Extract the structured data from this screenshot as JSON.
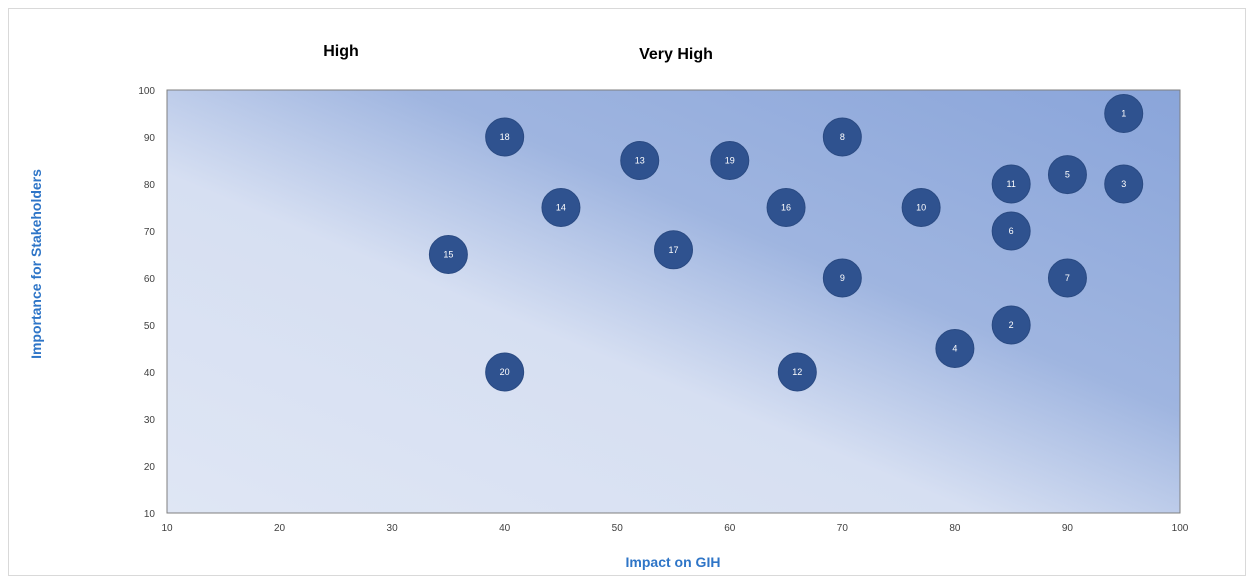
{
  "chart_data": {
    "type": "scatter",
    "title": "",
    "xlabel": "Impact on GIH",
    "ylabel": "Importance for Stakeholders",
    "xlim": [
      10,
      100
    ],
    "ylim": [
      10,
      100
    ],
    "xticks": [
      "10",
      "20",
      "30",
      "40",
      "50",
      "60",
      "70",
      "80",
      "90",
      "100"
    ],
    "yticks": [
      "10",
      "20",
      "30",
      "40",
      "50",
      "60",
      "70",
      "80",
      "90",
      "100"
    ],
    "grid": false,
    "zone_labels": [
      "High",
      "Very High"
    ],
    "points": [
      {
        "label": "1",
        "x": 95,
        "y": 95
      },
      {
        "label": "2",
        "x": 85,
        "y": 50
      },
      {
        "label": "3",
        "x": 95,
        "y": 80
      },
      {
        "label": "4",
        "x": 80,
        "y": 45
      },
      {
        "label": "5",
        "x": 90,
        "y": 82
      },
      {
        "label": "6",
        "x": 85,
        "y": 70
      },
      {
        "label": "7",
        "x": 90,
        "y": 60
      },
      {
        "label": "8",
        "x": 70,
        "y": 90
      },
      {
        "label": "9",
        "x": 70,
        "y": 60
      },
      {
        "label": "10",
        "x": 77,
        "y": 75
      },
      {
        "label": "11",
        "x": 85,
        "y": 80
      },
      {
        "label": "12",
        "x": 66,
        "y": 40
      },
      {
        "label": "13",
        "x": 52,
        "y": 85
      },
      {
        "label": "14",
        "x": 45,
        "y": 75
      },
      {
        "label": "15",
        "x": 35,
        "y": 65
      },
      {
        "label": "16",
        "x": 65,
        "y": 75
      },
      {
        "label": "17",
        "x": 55,
        "y": 66
      },
      {
        "label": "18",
        "x": 40,
        "y": 90
      },
      {
        "label": "19",
        "x": 60,
        "y": 85
      },
      {
        "label": "20",
        "x": 40,
        "y": 40
      }
    ],
    "colors": {
      "point": "#2f528f",
      "axis_title": "#2e75c7",
      "plot_gradient_dark": "#8faadc",
      "plot_gradient_light": "#dae3f3"
    }
  }
}
